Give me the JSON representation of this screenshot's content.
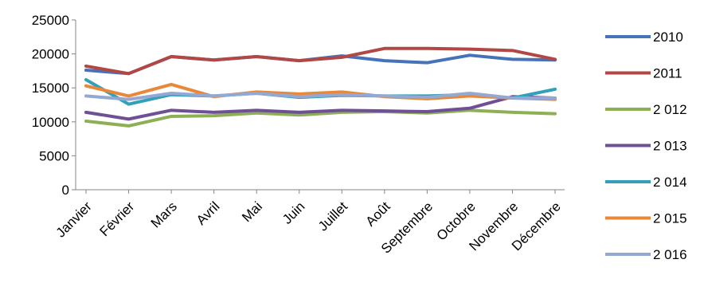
{
  "chart_data": {
    "type": "line",
    "title": "",
    "xlabel": "",
    "ylabel": "",
    "ylim": [
      0,
      25000
    ],
    "yticks": [
      0,
      5000,
      10000,
      15000,
      20000,
      25000
    ],
    "grid": false,
    "legend_position": "right",
    "categories": [
      "Janvier",
      "Février",
      "Mars",
      "Avril",
      "Mai",
      "Juin",
      "Juillet",
      "Août",
      "Septembre",
      "Octobre",
      "Novembre",
      "Décembre"
    ],
    "series": [
      {
        "name": "2010",
        "color": "#4672b8",
        "values": [
          17600,
          17100,
          19600,
          19100,
          19600,
          19000,
          19700,
          19000,
          18700,
          19800,
          19200,
          19100
        ]
      },
      {
        "name": "2011",
        "color": "#b14846",
        "values": [
          18200,
          17100,
          19600,
          19100,
          19600,
          19000,
          19500,
          20800,
          20800,
          20700,
          20500,
          19200
        ]
      },
      {
        "name": "2 012",
        "color": "#8cb053",
        "values": [
          10100,
          9400,
          10800,
          10900,
          11300,
          11000,
          11400,
          11500,
          11300,
          11700,
          11400,
          11200
        ]
      },
      {
        "name": "2 013",
        "color": "#6f4f96",
        "values": [
          11400,
          10400,
          11700,
          11400,
          11700,
          11400,
          11700,
          11600,
          11500,
          12000,
          13700,
          13500
        ]
      },
      {
        "name": "2 014",
        "color": "#31a0b8",
        "values": [
          16200,
          12600,
          14000,
          13800,
          14200,
          13600,
          13900,
          13800,
          13800,
          14000,
          13500,
          14800
        ]
      },
      {
        "name": "2 015",
        "color": "#e8883a",
        "values": [
          15300,
          13800,
          15500,
          13700,
          14400,
          14100,
          14400,
          13700,
          13400,
          13800,
          13500,
          13300
        ]
      },
      {
        "name": "2 016",
        "color": "#93a9d3",
        "values": [
          13800,
          13300,
          14200,
          13800,
          14200,
          13700,
          14000,
          13800,
          13600,
          14200,
          13500,
          13500
        ]
      }
    ]
  }
}
